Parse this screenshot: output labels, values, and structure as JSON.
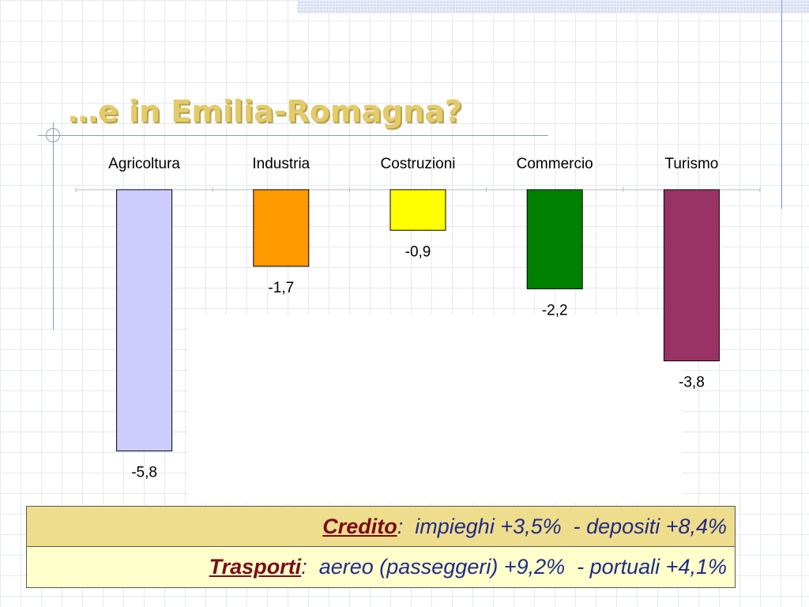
{
  "title": "…e in Emilia-Romagna?",
  "chart_data": {
    "type": "bar",
    "title": "",
    "xlabel": "",
    "ylabel": "",
    "categories": [
      "Agricoltura",
      "Industria",
      "Costruzioni",
      "Commercio",
      "Turismo"
    ],
    "values": [
      -5.8,
      -1.7,
      -0.9,
      -2.2,
      -3.8
    ],
    "value_labels": [
      "-5,8",
      "-1,7",
      "-0,9",
      "-2,2",
      "-3,8"
    ],
    "colors": [
      "#ccccff",
      "#ff9900",
      "#ffff00",
      "#008000",
      "#993366"
    ],
    "ylim": [
      -5.8,
      0
    ],
    "grid": false,
    "legend": "none"
  },
  "info": {
    "rows": [
      {
        "label": "Credito",
        "value": ":  impieghi +3,5%  - depositi +8,4%"
      },
      {
        "label": "Trasporti",
        "value": ":  aereo (passeggeri) +9,2%  - portuali +4,1%"
      }
    ]
  },
  "colors": {
    "title": "#e3cb6b",
    "info_text": "#1f2b86",
    "info_label": "#7a0b19",
    "row1_bg": "#efdd8e",
    "row2_bg": "#ffffcc"
  }
}
